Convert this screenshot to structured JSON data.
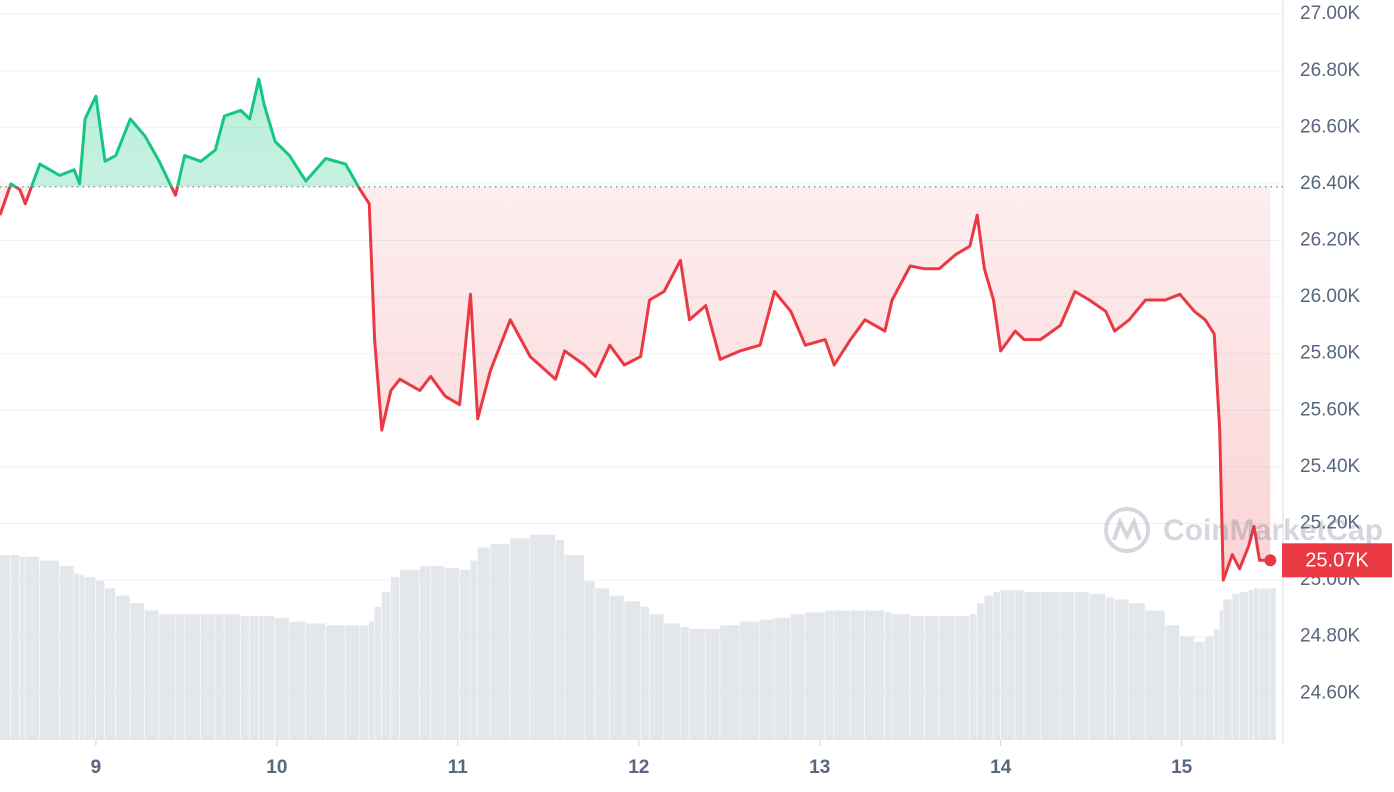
{
  "chart_data": {
    "type": "line",
    "xlim": [
      8.47,
      15.56
    ],
    "xticks": [
      9,
      10,
      11,
      12,
      13,
      14,
      15
    ],
    "ylim": [
      24435,
      27050
    ],
    "yticks": [
      {
        "value": 27000,
        "label": "27.00K"
      },
      {
        "value": 26800,
        "label": "26.80K"
      },
      {
        "value": 26600,
        "label": "26.60K"
      },
      {
        "value": 26400,
        "label": "26.40K"
      },
      {
        "value": 26200,
        "label": "26.20K"
      },
      {
        "value": 26000,
        "label": "26.00K"
      },
      {
        "value": 25800,
        "label": "25.80K"
      },
      {
        "value": 25600,
        "label": "25.60K"
      },
      {
        "value": 25400,
        "label": "25.40K"
      },
      {
        "value": 25200,
        "label": "25.20K"
      },
      {
        "value": 25000,
        "label": "25.00K"
      },
      {
        "value": 24800,
        "label": "24.80K"
      },
      {
        "value": 24600,
        "label": "24.60K"
      }
    ],
    "grid": true,
    "baseline": 26390,
    "up_color": "#16c784",
    "down_color": "#ea3943",
    "current_price": 25070,
    "current_price_label": "25.07K",
    "watermark": "CoinMarketCap",
    "series": [
      {
        "x": [
          8.47,
          8.53,
          8.58,
          8.61,
          8.69,
          8.8,
          8.88,
          8.91,
          8.94,
          9.0,
          9.05,
          9.11,
          9.19,
          9.27,
          9.35,
          9.44,
          9.49,
          9.58,
          9.66,
          9.71,
          9.8,
          9.85,
          9.9,
          9.93,
          9.99,
          10.07,
          10.16,
          10.27,
          10.38,
          10.46,
          10.51,
          10.54,
          10.58,
          10.63,
          10.68,
          10.79,
          10.85,
          10.93,
          11.01,
          11.07,
          11.11,
          11.18,
          11.29,
          11.4,
          11.54,
          11.59,
          11.7,
          11.76,
          11.84,
          11.92,
          12.01,
          12.06,
          12.14,
          12.23,
          12.28,
          12.37,
          12.45,
          12.56,
          12.67,
          12.75,
          12.84,
          12.92,
          13.03,
          13.08,
          13.17,
          13.25,
          13.36,
          13.4,
          13.5,
          13.58,
          13.66,
          13.75,
          13.83,
          13.87,
          13.91,
          13.96,
          14.0,
          14.08,
          14.13,
          14.22,
          14.33,
          14.41,
          14.49,
          14.58,
          14.63,
          14.71,
          14.8,
          14.91,
          14.99,
          15.07,
          15.13,
          15.18,
          15.21,
          15.23,
          15.28,
          15.32,
          15.37,
          15.4,
          15.43,
          15.49
        ],
        "values": [
          26290,
          26400,
          26380,
          26330,
          26470,
          26430,
          26450,
          26400,
          26630,
          26710,
          26480,
          26500,
          26630,
          26570,
          26480,
          26360,
          26500,
          26480,
          26520,
          26640,
          26660,
          26630,
          26770,
          26680,
          26550,
          26500,
          26410,
          26490,
          26470,
          26380,
          26330,
          25850,
          25530,
          25670,
          25710,
          25670,
          25720,
          25650,
          25620,
          26010,
          25570,
          25740,
          25920,
          25790,
          25710,
          25810,
          25760,
          25720,
          25830,
          25760,
          25790,
          25990,
          26020,
          26130,
          25920,
          25970,
          25780,
          25810,
          25830,
          26020,
          25950,
          25830,
          25850,
          25760,
          25850,
          25920,
          25880,
          25990,
          26110,
          26100,
          26100,
          26150,
          26180,
          26290,
          26100,
          25990,
          25810,
          25880,
          25850,
          25850,
          25900,
          26020,
          25990,
          25950,
          25880,
          25920,
          25990,
          25990,
          26010,
          25950,
          25920,
          25870,
          25530,
          25000,
          25090,
          25040,
          25120,
          25190,
          25070,
          25070
        ]
      }
    ],
    "volume_lim": [
      0,
      400
    ],
    "volume": [
      100,
      100,
      99,
      99,
      97,
      94,
      90,
      89,
      88,
      86,
      82,
      78,
      74,
      70,
      68,
      68,
      68,
      68,
      68,
      68,
      67,
      67,
      67,
      67,
      66,
      64,
      63,
      62,
      62,
      62,
      64,
      72,
      80,
      88,
      92,
      94,
      94,
      93,
      92,
      97,
      104,
      106,
      109,
      111,
      108,
      100,
      86,
      82,
      78,
      75,
      72,
      68,
      63,
      61,
      60,
      60,
      62,
      64,
      65,
      66,
      68,
      69,
      70,
      70,
      70,
      70,
      69,
      68,
      67,
      67,
      67,
      67,
      68,
      74,
      78,
      80,
      81,
      81,
      80,
      80,
      80,
      80,
      79,
      77,
      76,
      74,
      70,
      62,
      56,
      53,
      56,
      60,
      70,
      76,
      79,
      80,
      81,
      82,
      82,
      82
    ]
  }
}
